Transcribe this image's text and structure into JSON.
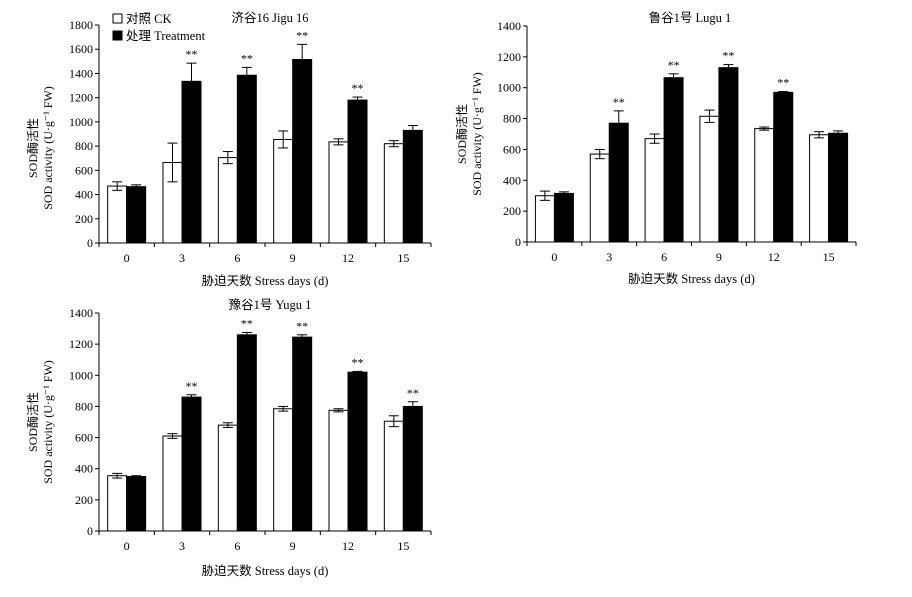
{
  "figure": {
    "legend": {
      "ck_label": "对照 CK",
      "treatment_label": "处理 Treatment"
    }
  },
  "chart_data": [
    {
      "type": "bar",
      "title": "济谷16 Jigu 16",
      "ylabel_line1": "SOD酶活性",
      "ylabel_line2": "SOD activity (U·g⁻¹ FW)",
      "xlabel": "胁迫天数 Stress days (d)",
      "categories": [
        "0",
        "3",
        "6",
        "9",
        "12",
        "15"
      ],
      "ylim": [
        0,
        1800
      ],
      "yticks": [
        0,
        200,
        400,
        600,
        800,
        1000,
        1200,
        1400,
        1600,
        1800
      ],
      "legend": "top-left",
      "series": [
        {
          "name": "对照 CK",
          "color": "#ffffff",
          "values": [
            470,
            665,
            705,
            855,
            835,
            820
          ],
          "errors": [
            35,
            160,
            50,
            70,
            25,
            25
          ]
        },
        {
          "name": "处理 Treatment",
          "color": "#000000",
          "values": [
            465,
            1335,
            1385,
            1515,
            1180,
            930
          ],
          "errors": [
            15,
            150,
            65,
            125,
            25,
            40
          ]
        }
      ],
      "annotations": [
        "",
        "**",
        "**",
        "**",
        "**",
        ""
      ]
    },
    {
      "type": "bar",
      "title": "鲁谷1号 Lugu 1",
      "ylabel_line1": "SOD酶活性",
      "ylabel_line2": "SOD activity (U·g⁻¹ FW)",
      "xlabel": "胁迫天数 Stress days (d)",
      "categories": [
        "0",
        "3",
        "6",
        "9",
        "12",
        "15"
      ],
      "ylim": [
        0,
        1400
      ],
      "yticks": [
        0,
        200,
        400,
        600,
        800,
        1000,
        1200,
        1400
      ],
      "series": [
        {
          "name": "对照 CK",
          "color": "#ffffff",
          "values": [
            300,
            570,
            670,
            815,
            735,
            695
          ],
          "errors": [
            30,
            30,
            30,
            40,
            10,
            20
          ]
        },
        {
          "name": "处理 Treatment",
          "color": "#000000",
          "values": [
            315,
            770,
            1065,
            1130,
            970,
            705
          ],
          "errors": [
            10,
            80,
            25,
            20,
            5,
            15
          ]
        }
      ],
      "annotations": [
        "",
        "**",
        "**",
        "**",
        "**",
        ""
      ]
    },
    {
      "type": "bar",
      "title": "豫谷1号 Yugu 1",
      "ylabel_line1": "SOD酶活性",
      "ylabel_line2": "SOD activity (U·g⁻¹ FW)",
      "xlabel": "胁迫天数 Stress days (d)",
      "categories": [
        "0",
        "3",
        "6",
        "9",
        "12",
        "15"
      ],
      "ylim": [
        0,
        1400
      ],
      "yticks": [
        0,
        200,
        400,
        600,
        800,
        1000,
        1200,
        1400
      ],
      "series": [
        {
          "name": "对照 CK",
          "color": "#ffffff",
          "values": [
            355,
            610,
            680,
            785,
            775,
            705
          ],
          "errors": [
            15,
            15,
            15,
            15,
            10,
            35
          ]
        },
        {
          "name": "处理 Treatment",
          "color": "#000000",
          "values": [
            350,
            860,
            1260,
            1245,
            1020,
            800
          ],
          "errors": [
            5,
            15,
            15,
            15,
            5,
            30
          ]
        }
      ],
      "annotations": [
        "",
        "**",
        "**",
        "**",
        "**",
        "**"
      ]
    }
  ]
}
